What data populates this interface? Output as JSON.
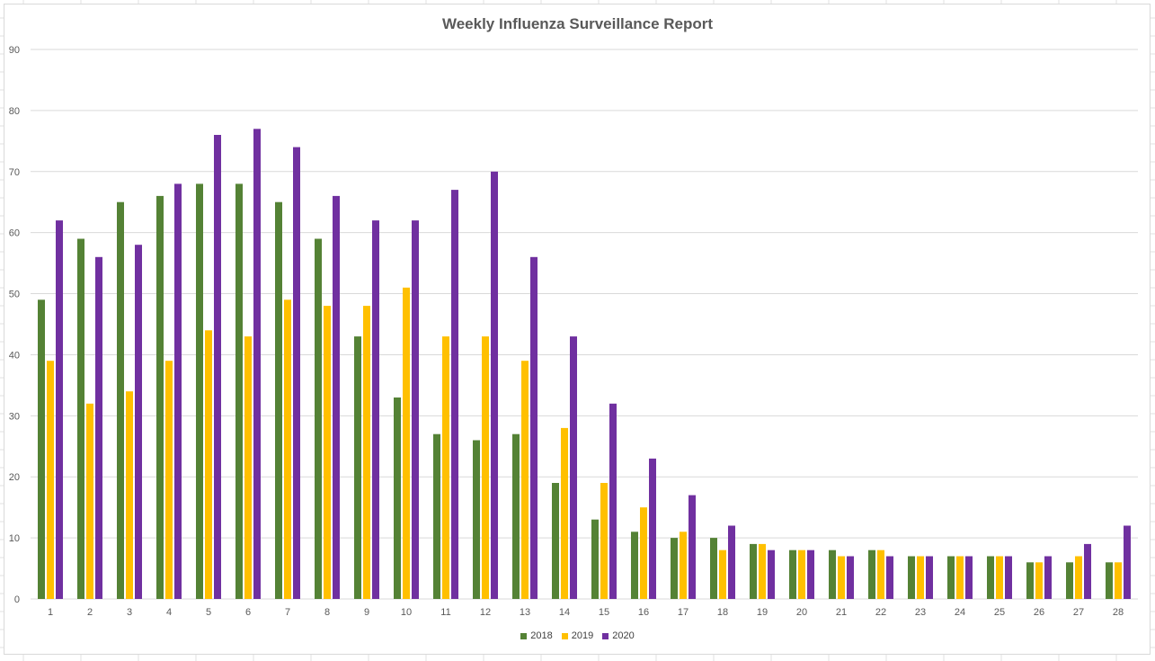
{
  "chart_data": {
    "type": "bar",
    "title": "Weekly Influenza Surveillance Report",
    "xlabel": "",
    "ylabel": "",
    "ylim": [
      0,
      90
    ],
    "yticks": [
      0,
      10,
      20,
      30,
      40,
      50,
      60,
      70,
      80,
      90
    ],
    "grid": true,
    "legend_position": "bottom",
    "categories": [
      "1",
      "2",
      "3",
      "4",
      "5",
      "6",
      "7",
      "8",
      "9",
      "10",
      "11",
      "12",
      "13",
      "14",
      "15",
      "16",
      "17",
      "18",
      "19",
      "20",
      "21",
      "22",
      "23",
      "24",
      "25",
      "26",
      "27",
      "28"
    ],
    "series": [
      {
        "name": "2018",
        "color": "#548235",
        "values": [
          49,
          59,
          65,
          66,
          68,
          68,
          65,
          59,
          43,
          33,
          27,
          26,
          27,
          19,
          13,
          11,
          10,
          10,
          9,
          8,
          8,
          8,
          7,
          7,
          7,
          6,
          6,
          6
        ]
      },
      {
        "name": "2019",
        "color": "#ffc000",
        "values": [
          39,
          32,
          34,
          39,
          44,
          43,
          49,
          48,
          48,
          51,
          43,
          43,
          39,
          28,
          19,
          15,
          11,
          8,
          9,
          8,
          7,
          8,
          7,
          7,
          7,
          6,
          7,
          6
        ]
      },
      {
        "name": "2020",
        "color": "#7030a0",
        "values": [
          62,
          56,
          58,
          68,
          76,
          77,
          74,
          66,
          62,
          62,
          67,
          70,
          56,
          43,
          32,
          23,
          17,
          12,
          8,
          8,
          7,
          7,
          7,
          7,
          7,
          7,
          9,
          12
        ]
      }
    ]
  }
}
